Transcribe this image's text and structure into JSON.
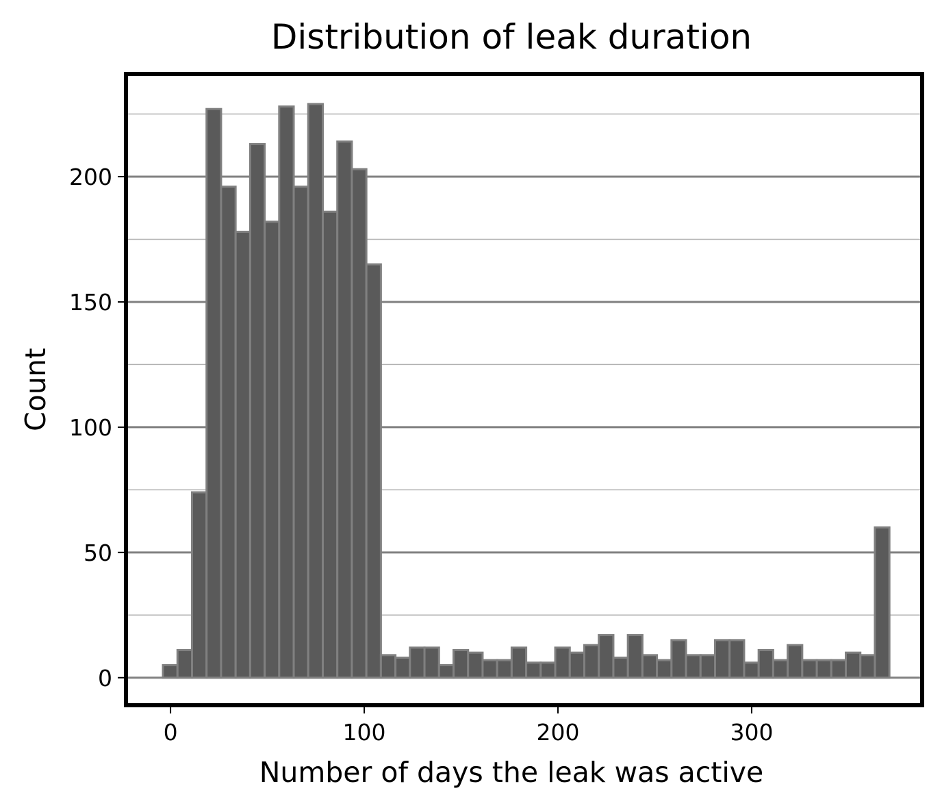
{
  "chart_data": {
    "type": "bar",
    "subtype": "histogram",
    "title": "Distribution of leak duration",
    "xlabel": "Number of days the leak was active",
    "ylabel": "Count",
    "xlim": [
      -23,
      388
    ],
    "ylim": [
      -11,
      241
    ],
    "xticks": [
      0,
      100,
      200,
      300
    ],
    "yticks": [
      0,
      50,
      100,
      150,
      200
    ],
    "grid": true,
    "bar_color": "#5a5a5a",
    "edge_color": "#808080",
    "bin_edges": [
      -3.9,
      3.6,
      11.1,
      18.6,
      26.1,
      33.6,
      41.1,
      48.6,
      56.1,
      63.6,
      71.1,
      78.6,
      86.1,
      93.6,
      101.1,
      108.6,
      116.1,
      123.6,
      131.1,
      138.6,
      146.1,
      153.6,
      161.1,
      168.6,
      176.1,
      183.6,
      191.1,
      198.6,
      206.1,
      213.6,
      221.1,
      228.6,
      236.1,
      243.6,
      251.1,
      258.6,
      266.1,
      273.6,
      281.1,
      288.6,
      296.1,
      303.6,
      311.1,
      318.6,
      326.1,
      333.6,
      341.1,
      348.6,
      356.1,
      363.6,
      371.1
    ],
    "values": [
      5,
      11,
      74,
      227,
      196,
      178,
      213,
      182,
      228,
      196,
      229,
      186,
      214,
      203,
      165,
      9,
      8,
      12,
      12,
      5,
      11,
      10,
      7,
      7,
      12,
      6,
      6,
      12,
      10,
      13,
      17,
      8,
      17,
      9,
      7,
      15,
      9,
      9,
      15,
      15,
      6,
      11,
      7,
      13,
      7,
      7,
      7,
      10,
      9,
      60
    ]
  }
}
